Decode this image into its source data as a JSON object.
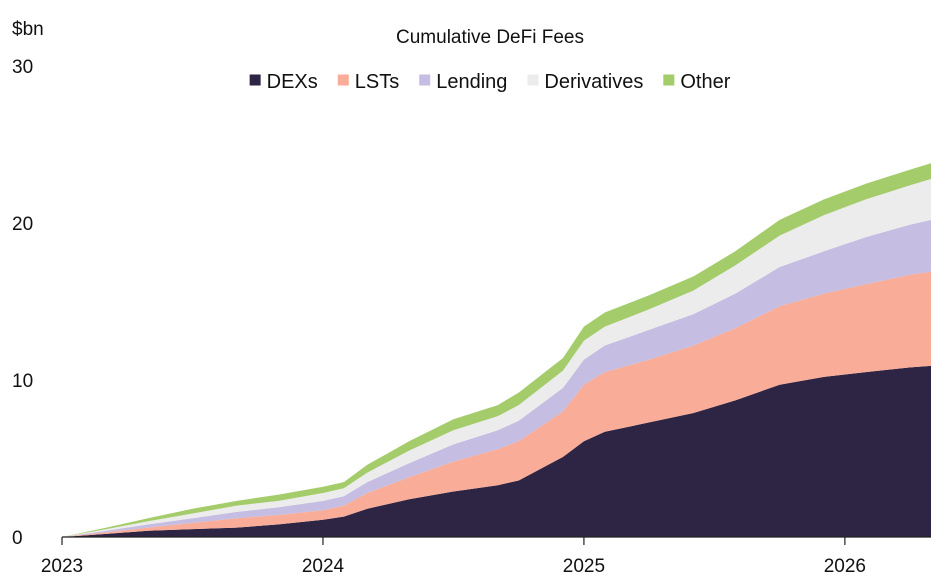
{
  "chart_data": {
    "type": "area",
    "stacked": true,
    "title": "Cumulative DeFi Fees",
    "ylabel": "$bn",
    "xlabel": "",
    "ylim": [
      0,
      30
    ],
    "yticks": [
      0,
      10,
      20,
      30
    ],
    "xticks": [
      2023,
      2024,
      2025,
      2026
    ],
    "xlim": [
      2023.0,
      2026.33
    ],
    "grid": false,
    "legend_position": "top-center",
    "x": [
      2023.0,
      2023.17,
      2023.33,
      2023.5,
      2023.67,
      2023.83,
      2024.0,
      2024.08,
      2024.17,
      2024.33,
      2024.5,
      2024.67,
      2024.75,
      2024.92,
      2025.0,
      2025.08,
      2025.25,
      2025.42,
      2025.58,
      2025.75,
      2025.92,
      2026.08,
      2026.25,
      2026.33
    ],
    "series": [
      {
        "name": "DEXs",
        "color": "#2e2545",
        "values": [
          0.0,
          0.2,
          0.4,
          0.5,
          0.6,
          0.8,
          1.1,
          1.3,
          1.8,
          2.4,
          2.9,
          3.3,
          3.6,
          5.1,
          6.1,
          6.7,
          7.3,
          7.9,
          8.7,
          9.7,
          10.2,
          10.5,
          10.8,
          10.9
        ]
      },
      {
        "name": "LSTs",
        "color": "#f9ad98",
        "values": [
          0.0,
          0.1,
          0.2,
          0.4,
          0.6,
          0.6,
          0.6,
          0.7,
          1.0,
          1.4,
          1.9,
          2.3,
          2.5,
          2.9,
          3.6,
          3.8,
          4.0,
          4.3,
          4.6,
          5.0,
          5.3,
          5.6,
          5.9,
          6.0
        ]
      },
      {
        "name": "Lending",
        "color": "#c5bde2",
        "values": [
          0.0,
          0.1,
          0.2,
          0.3,
          0.4,
          0.5,
          0.6,
          0.6,
          0.7,
          0.9,
          1.1,
          1.2,
          1.3,
          1.5,
          1.6,
          1.7,
          1.9,
          2.0,
          2.2,
          2.5,
          2.7,
          3.0,
          3.2,
          3.3
        ]
      },
      {
        "name": "Derivatives",
        "color": "#ececec",
        "values": [
          0.0,
          0.1,
          0.2,
          0.3,
          0.4,
          0.4,
          0.5,
          0.5,
          0.6,
          0.8,
          0.9,
          0.9,
          1.0,
          1.1,
          1.2,
          1.2,
          1.3,
          1.5,
          1.8,
          2.0,
          2.3,
          2.4,
          2.5,
          2.6
        ]
      },
      {
        "name": "Other",
        "color": "#a4cc6b",
        "values": [
          0.0,
          0.1,
          0.2,
          0.3,
          0.3,
          0.4,
          0.4,
          0.4,
          0.5,
          0.6,
          0.7,
          0.7,
          0.8,
          0.8,
          0.9,
          0.9,
          0.9,
          0.9,
          0.9,
          1.0,
          1.0,
          1.0,
          1.0,
          1.0
        ]
      }
    ]
  }
}
